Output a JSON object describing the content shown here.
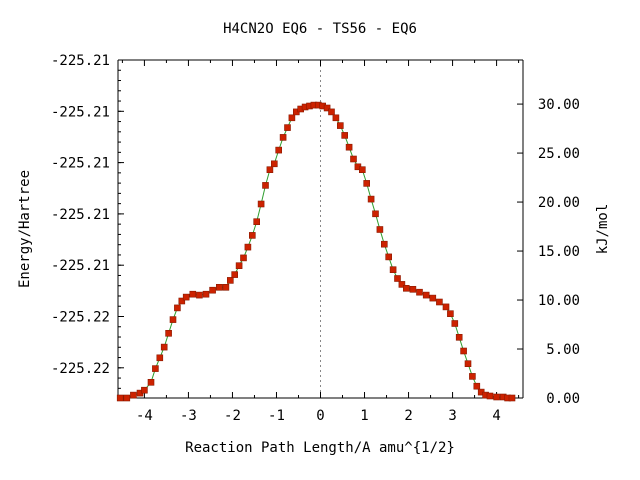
{
  "chart_data": {
    "type": "line",
    "title": "H4CN2O   EQ6 - TS56 - EQ6",
    "xlabel": "Reaction Path Length/A amu^{1/2}",
    "ylabel_left": "Energy/Hartree",
    "ylabel_right": "kJ/mol",
    "xlim": [
      -4.6,
      4.6
    ],
    "x_ticks": [
      -4,
      -3,
      -2,
      -1,
      0,
      1,
      2,
      3,
      4
    ],
    "x_tick_labels": [
      "-4",
      "-3",
      "-2",
      "-1",
      "0",
      "1",
      "2",
      "3",
      "4"
    ],
    "left_tick_labels": [
      "-225.21",
      "-225.21",
      "-225.21",
      "-225.21",
      "-225.21",
      "-225.22",
      "-225.22"
    ],
    "right_ylim": [
      0,
      34.5
    ],
    "right_ticks": [
      0,
      5,
      10,
      15,
      20,
      25,
      30
    ],
    "right_tick_labels": [
      "0.00",
      "5.00",
      "10.00",
      "15.00",
      "20.00",
      "25.00",
      "30.00"
    ],
    "grid": false,
    "vertical_reference_x": 0,
    "line_color": "#2e9e2e",
    "marker_color": "#cc2200",
    "series": [
      {
        "x": [
          -4.55,
          -4.4,
          -4.25,
          -4.1,
          -4.0,
          -3.85,
          -3.75,
          -3.65,
          -3.55,
          -3.45,
          -3.35,
          -3.25,
          -3.15,
          -3.05,
          -2.9,
          -2.75,
          -2.6,
          -2.45,
          -2.3,
          -2.15,
          -2.05,
          -1.95,
          -1.85,
          -1.75,
          -1.65,
          -1.55,
          -1.45,
          -1.35,
          -1.25,
          -1.15,
          -1.05,
          -0.95,
          -0.85,
          -0.75,
          -0.65,
          -0.55,
          -0.45,
          -0.35,
          -0.25,
          -0.15,
          -0.05,
          0.05,
          0.15,
          0.25,
          0.35,
          0.45,
          0.55,
          0.65,
          0.75,
          0.85,
          0.95,
          1.05,
          1.15,
          1.25,
          1.35,
          1.45,
          1.55,
          1.65,
          1.75,
          1.85,
          1.95,
          2.1,
          2.25,
          2.4,
          2.55,
          2.7,
          2.85,
          2.95,
          3.05,
          3.15,
          3.25,
          3.35,
          3.45,
          3.55,
          3.65,
          3.75,
          3.85,
          4.0,
          4.15,
          4.25,
          4.35
        ],
        "y": [
          0.0,
          0.0,
          0.3,
          0.5,
          0.8,
          1.6,
          3.0,
          4.1,
          5.2,
          6.6,
          8.0,
          9.2,
          9.9,
          10.3,
          10.6,
          10.5,
          10.6,
          11.0,
          11.3,
          11.3,
          12.0,
          12.6,
          13.5,
          14.3,
          15.4,
          16.6,
          18.0,
          19.8,
          21.7,
          23.3,
          23.9,
          25.3,
          26.6,
          27.6,
          28.6,
          29.2,
          29.5,
          29.7,
          29.8,
          29.9,
          29.9,
          29.8,
          29.6,
          29.2,
          28.6,
          27.8,
          26.8,
          25.6,
          24.4,
          23.6,
          23.3,
          21.9,
          20.3,
          18.8,
          17.2,
          15.7,
          14.4,
          13.1,
          12.2,
          11.6,
          11.2,
          11.1,
          10.8,
          10.5,
          10.2,
          9.8,
          9.3,
          8.6,
          7.6,
          6.2,
          4.8,
          3.5,
          2.2,
          1.2,
          0.6,
          0.3,
          0.2,
          0.1,
          0.1,
          0.0,
          0.0
        ]
      }
    ]
  }
}
